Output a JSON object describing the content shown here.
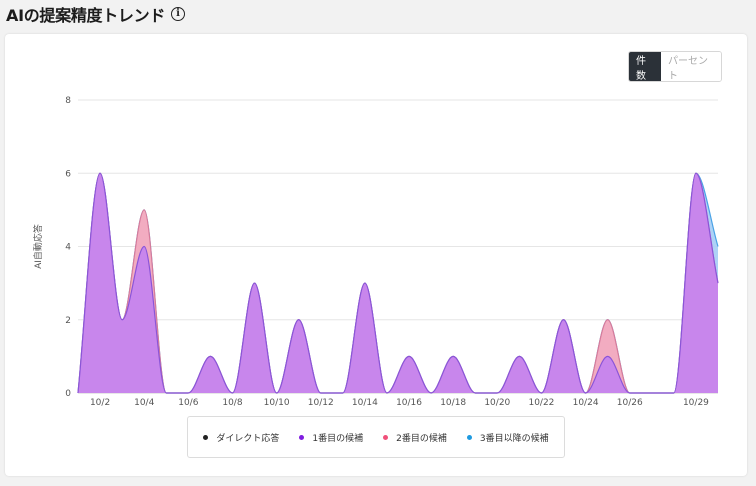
{
  "header": {
    "title": "AIの提案精度トレンド",
    "info_icon": "i"
  },
  "toggle": {
    "count_label": "件数",
    "percent_label": "パーセント",
    "selected": "件数"
  },
  "chart_data": {
    "type": "area",
    "ylabel": "AI自動応答",
    "ylim": [
      0,
      8
    ],
    "yticks": [
      0,
      2,
      4,
      6,
      8
    ],
    "x_tick_labels": [
      "10/2",
      "10/4",
      "10/6",
      "10/8",
      "10/10",
      "10/12",
      "10/14",
      "10/16",
      "10/18",
      "10/20",
      "10/22",
      "10/24",
      "10/26",
      "10/29"
    ],
    "x_tick_days": [
      2,
      4,
      6,
      8,
      10,
      12,
      14,
      16,
      18,
      20,
      22,
      24,
      26,
      29
    ],
    "x": [
      1,
      2,
      3,
      4,
      5,
      6,
      7,
      8,
      9,
      10,
      11,
      12,
      13,
      14,
      15,
      16,
      17,
      18,
      19,
      20,
      21,
      22,
      23,
      24,
      25,
      26,
      27,
      28,
      29,
      30
    ],
    "series": [
      {
        "name": "ダイレクト応答",
        "color": "#222222",
        "values": [
          0,
          0,
          0,
          0,
          0,
          0,
          0,
          0,
          0,
          0,
          0,
          0,
          0,
          0,
          0,
          0,
          0,
          0,
          0,
          0,
          0,
          0,
          0,
          0,
          0,
          0,
          0,
          0,
          0,
          0
        ]
      },
      {
        "name": "1番目の候補",
        "color": "#7f1de0",
        "values": [
          0,
          6,
          2,
          4,
          0,
          0,
          1,
          0,
          3,
          0,
          2,
          0,
          0,
          3,
          0,
          1,
          0,
          1,
          0,
          0,
          1,
          0,
          2,
          0,
          1,
          0,
          0,
          0,
          6,
          3
        ]
      },
      {
        "name": "2番目の候補",
        "color": "#f0507a",
        "values": [
          0,
          6,
          2,
          5,
          0,
          0,
          1,
          0,
          3,
          0,
          2,
          0,
          0,
          3,
          0,
          1,
          0,
          1,
          0,
          0,
          1,
          0,
          2,
          0,
          2,
          0,
          0,
          0,
          6,
          3
        ]
      },
      {
        "name": "3番目以降の候補",
        "color": "#1e9ae0",
        "values": [
          0,
          6,
          2,
          5,
          0,
          0,
          1,
          0,
          3,
          0,
          2,
          0,
          0,
          3,
          0,
          1,
          0,
          1,
          0,
          0,
          1,
          0,
          2,
          0,
          2,
          0,
          0,
          0,
          6,
          4
        ]
      }
    ],
    "grid": true,
    "legend_position": "bottom"
  }
}
